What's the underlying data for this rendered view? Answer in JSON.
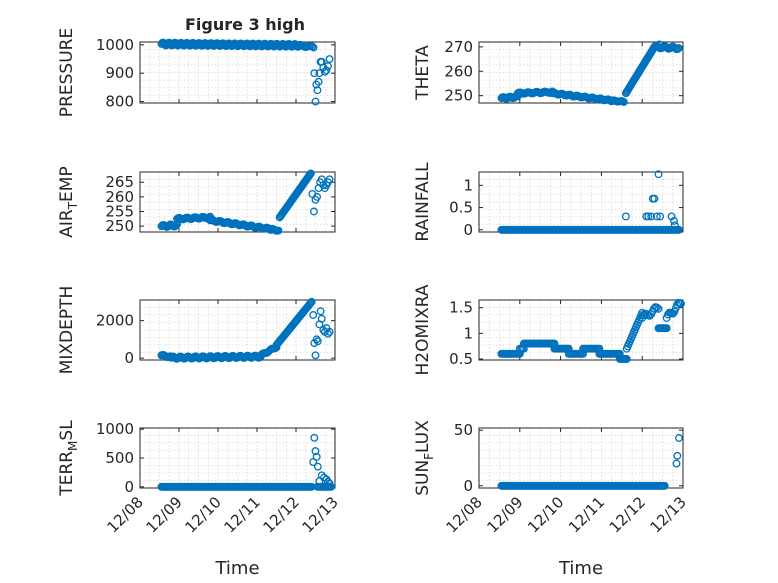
{
  "figure": {
    "title": "Figure 3 high",
    "xlabel": "Time",
    "x_tick_labels": [
      "12/08",
      "12/09",
      "12/10",
      "12/11",
      "12/12",
      "12/13"
    ],
    "marker_color": "#0072BD",
    "axis_color": "#262626"
  },
  "chart_data": [
    {
      "type": "scatter",
      "ylabel": "PRESSURE",
      "yticks": [
        800,
        900,
        1000
      ],
      "ylim": [
        795,
        1010
      ],
      "xlim": [
        0,
        5
      ],
      "grid": true,
      "segments": [
        {
          "x0": 0.55,
          "x1": 4.05,
          "y0": 1003,
          "y1": 998,
          "n": 160,
          "wave": 5
        },
        {
          "x0": 4.05,
          "x1": 4.45,
          "y0": 998,
          "y1": 992,
          "n": 12,
          "wave": 3
        }
      ],
      "points": [
        [
          4.47,
          900
        ],
        [
          4.5,
          800
        ],
        [
          4.52,
          860
        ],
        [
          4.55,
          840
        ],
        [
          4.58,
          870
        ],
        [
          4.6,
          900
        ],
        [
          4.63,
          940
        ],
        [
          4.66,
          940
        ],
        [
          4.7,
          920
        ],
        [
          4.74,
          905
        ],
        [
          4.78,
          910
        ],
        [
          4.82,
          925
        ],
        [
          4.86,
          950
        ]
      ]
    },
    {
      "type": "scatter",
      "ylabel": "THETA",
      "yticks": [
        250,
        260,
        270
      ],
      "ylim": [
        247,
        272
      ],
      "xlim": [
        0,
        5
      ],
      "grid": true,
      "segments": [
        {
          "x0": 0.55,
          "x1": 0.95,
          "y0": 249,
          "y1": 249.5,
          "n": 18,
          "wave": 0.4
        },
        {
          "x0": 0.95,
          "x1": 1.8,
          "y0": 251,
          "y1": 251.5,
          "n": 30,
          "wave": 0.3
        },
        {
          "x0": 1.8,
          "x1": 3.25,
          "y0": 251,
          "y1": 248,
          "n": 55,
          "wave": 0.3
        },
        {
          "x0": 3.25,
          "x1": 3.55,
          "y0": 248,
          "y1": 247.5,
          "n": 12,
          "wave": 0.2
        },
        {
          "x0": 3.6,
          "x1": 4.3,
          "y0": 251,
          "y1": 270,
          "n": 40,
          "wave": 0
        },
        {
          "x0": 4.3,
          "x1": 4.9,
          "y0": 270,
          "y1": 269.5,
          "n": 22,
          "wave": 0.5
        }
      ],
      "points": [
        [
          4.42,
          271
        ],
        [
          4.36,
          270.5
        ]
      ]
    },
    {
      "type": "scatter",
      "ylabel": "AIR_TEMP",
      "yticks": [
        250,
        255,
        260,
        265
      ],
      "ylim": [
        248,
        268.5
      ],
      "xlim": [
        0,
        5
      ],
      "grid": true,
      "segments": [
        {
          "x0": 0.55,
          "x1": 0.95,
          "y0": 250,
          "y1": 250.3,
          "n": 16,
          "wave": 0.4
        },
        {
          "x0": 0.95,
          "x1": 1.8,
          "y0": 252.5,
          "y1": 253,
          "n": 30,
          "wave": 0.3
        },
        {
          "x0": 1.8,
          "x1": 3.35,
          "y0": 252,
          "y1": 249,
          "n": 55,
          "wave": 0.3
        },
        {
          "x0": 3.35,
          "x1": 3.55,
          "y0": 249,
          "y1": 248.5,
          "n": 8,
          "wave": 0.2
        },
        {
          "x0": 3.58,
          "x1": 4.38,
          "y0": 253,
          "y1": 268,
          "n": 40,
          "wave": 0
        }
      ],
      "points": [
        [
          4.42,
          261
        ],
        [
          4.46,
          255
        ],
        [
          4.5,
          259
        ],
        [
          4.54,
          260
        ],
        [
          4.58,
          263
        ],
        [
          4.62,
          265
        ],
        [
          4.66,
          266
        ],
        [
          4.7,
          264
        ],
        [
          4.74,
          263
        ],
        [
          4.78,
          264
        ],
        [
          4.82,
          265
        ],
        [
          4.86,
          266
        ]
      ]
    },
    {
      "type": "scatter",
      "ylabel": "RAINFALL",
      "yticks": [
        0,
        0.5,
        1
      ],
      "ylim": [
        -0.05,
        1.3
      ],
      "xlim": [
        0,
        5
      ],
      "grid": true,
      "segments": [
        {
          "x0": 0.55,
          "x1": 4.6,
          "y0": 0,
          "y1": 0,
          "n": 190,
          "wave": 0
        },
        {
          "x0": 4.6,
          "x1": 4.9,
          "y0": 0,
          "y1": 0,
          "n": 14,
          "wave": 0
        }
      ],
      "points": [
        [
          3.6,
          0.3
        ],
        [
          4.1,
          0.3
        ],
        [
          4.15,
          0.3
        ],
        [
          4.22,
          0.3
        ],
        [
          4.26,
          0.7
        ],
        [
          4.3,
          0.7
        ],
        [
          4.36,
          0.3
        ],
        [
          4.4,
          1.25
        ],
        [
          4.44,
          0.3
        ],
        [
          4.72,
          0.3
        ],
        [
          4.78,
          0.2
        ],
        [
          4.8,
          0.1
        ]
      ]
    },
    {
      "type": "scatter",
      "ylabel": "MIXDEPTH",
      "yticks": [
        0,
        2000
      ],
      "ylim": [
        -100,
        3100
      ],
      "xlim": [
        0,
        5
      ],
      "grid": true,
      "segments": [
        {
          "x0": 0.55,
          "x1": 0.8,
          "y0": 150,
          "y1": 50,
          "n": 10,
          "wave": 40
        },
        {
          "x0": 0.8,
          "x1": 3.1,
          "y0": 20,
          "y1": 80,
          "n": 85,
          "wave": 60
        },
        {
          "x0": 3.1,
          "x1": 3.5,
          "y0": 150,
          "y1": 600,
          "n": 14,
          "wave": 40
        },
        {
          "x0": 3.5,
          "x1": 4.4,
          "y0": 700,
          "y1": 3000,
          "n": 40,
          "wave": 0
        }
      ],
      "points": [
        [
          4.44,
          2300
        ],
        [
          4.47,
          800
        ],
        [
          4.5,
          150
        ],
        [
          4.53,
          1000
        ],
        [
          4.56,
          900
        ],
        [
          4.6,
          1800
        ],
        [
          4.63,
          2500
        ],
        [
          4.66,
          2100
        ],
        [
          4.7,
          1500
        ],
        [
          4.74,
          1400
        ],
        [
          4.78,
          1600
        ],
        [
          4.82,
          1300
        ],
        [
          4.86,
          1400
        ]
      ]
    },
    {
      "type": "scatter",
      "ylabel": "H2OMIXRA",
      "yticks": [
        0.5,
        1,
        1.5
      ],
      "ylim": [
        0.48,
        1.65
      ],
      "xlim": [
        0,
        5
      ],
      "grid": true,
      "segments": [
        {
          "x0": 0.55,
          "x1": 1.0,
          "y0": 0.6,
          "y1": 0.6,
          "n": 18,
          "wave": 0
        },
        {
          "x0": 1.0,
          "x1": 1.1,
          "y0": 0.7,
          "y1": 0.7,
          "n": 4,
          "wave": 0
        },
        {
          "x0": 1.1,
          "x1": 1.85,
          "y0": 0.8,
          "y1": 0.8,
          "n": 28,
          "wave": 0
        },
        {
          "x0": 1.85,
          "x1": 2.2,
          "y0": 0.7,
          "y1": 0.7,
          "n": 14,
          "wave": 0
        },
        {
          "x0": 2.2,
          "x1": 2.55,
          "y0": 0.6,
          "y1": 0.6,
          "n": 12,
          "wave": 0
        },
        {
          "x0": 2.55,
          "x1": 2.95,
          "y0": 0.7,
          "y1": 0.7,
          "n": 14,
          "wave": 0
        },
        {
          "x0": 2.95,
          "x1": 3.45,
          "y0": 0.6,
          "y1": 0.6,
          "n": 18,
          "wave": 0
        },
        {
          "x0": 3.45,
          "x1": 3.62,
          "y0": 0.5,
          "y1": 0.5,
          "n": 8,
          "wave": 0
        },
        {
          "x0": 3.62,
          "x1": 4.0,
          "y0": 0.7,
          "y1": 1.4,
          "n": 16,
          "wave": 0
        },
        {
          "x0": 4.0,
          "x1": 4.4,
          "y0": 1.3,
          "y1": 1.5,
          "n": 12,
          "wave": 0.05
        },
        {
          "x0": 4.4,
          "x1": 4.6,
          "y0": 1.1,
          "y1": 1.1,
          "n": 8,
          "wave": 0
        },
        {
          "x0": 4.6,
          "x1": 4.95,
          "y0": 1.3,
          "y1": 1.6,
          "n": 12,
          "wave": 0.05
        }
      ],
      "points": []
    },
    {
      "type": "scatter",
      "ylabel": "TERR_MSL",
      "yticks": [
        0,
        500,
        1000
      ],
      "ylim": [
        -20,
        1020
      ],
      "xlim": [
        0,
        5
      ],
      "grid": true,
      "segments": [
        {
          "x0": 0.55,
          "x1": 4.4,
          "y0": 0,
          "y1": 0,
          "n": 180,
          "wave": 0
        },
        {
          "x0": 4.55,
          "x1": 4.9,
          "y0": 0,
          "y1": 0,
          "n": 12,
          "wave": 0
        }
      ],
      "points": [
        [
          4.44,
          430
        ],
        [
          4.47,
          850
        ],
        [
          4.5,
          620
        ],
        [
          4.53,
          520
        ],
        [
          4.56,
          350
        ],
        [
          4.6,
          100
        ],
        [
          4.66,
          200
        ],
        [
          4.72,
          160
        ],
        [
          4.78,
          130
        ],
        [
          4.82,
          90
        ],
        [
          4.86,
          60
        ]
      ]
    },
    {
      "type": "scatter",
      "ylabel": "SUN_FLUX",
      "yticks": [
        0,
        50
      ],
      "ylim": [
        -2,
        52
      ],
      "xlim": [
        0,
        5
      ],
      "grid": true,
      "segments": [
        {
          "x0": 0.55,
          "x1": 4.55,
          "y0": 0,
          "y1": 0,
          "n": 190,
          "wave": 0
        }
      ],
      "points": [
        [
          4.9,
          43
        ],
        [
          4.86,
          27
        ],
        [
          4.84,
          20
        ]
      ]
    }
  ]
}
